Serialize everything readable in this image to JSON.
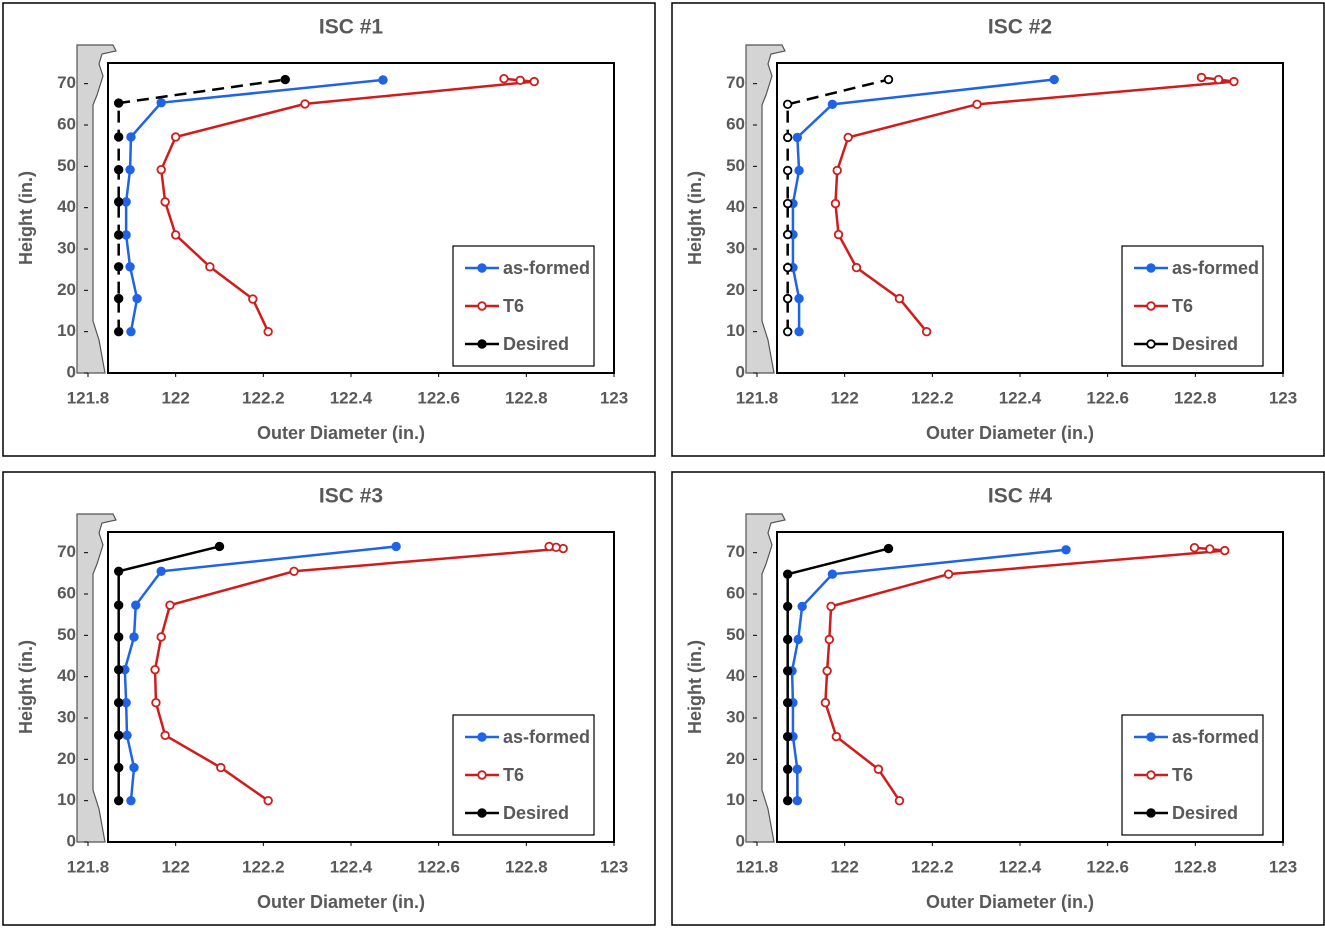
{
  "chart_data": [
    {
      "type": "line",
      "title": "ISC #1",
      "x_label": "Outer Diameter (in.)",
      "y_label": "Height (in.)",
      "xlim": [
        121.8,
        123
      ],
      "xticks": [
        121.8,
        122,
        122.2,
        122.4,
        122.6,
        122.8,
        123
      ],
      "ylim": [
        0,
        75
      ],
      "yticks": [
        0,
        10,
        20,
        30,
        40,
        50,
        60,
        70
      ],
      "legend": "lower right",
      "series": [
        {
          "name": "as-formed",
          "color": "#1f63e6",
          "line_style": "solid",
          "marker": "filled",
          "x": [
            121.898,
            121.912,
            121.896,
            121.887,
            121.887,
            121.896,
            121.898,
            121.967,
            122.473
          ],
          "values": [
            10,
            18,
            25.7,
            33.4,
            41.4,
            49.2,
            57.1,
            65.4,
            70.9
          ]
        },
        {
          "name": "T6",
          "color": "#d01c1c",
          "line_style": "solid",
          "marker": "open",
          "x": [
            122.211,
            122.176,
            122.078,
            122.0,
            121.976,
            121.967,
            122.0,
            122.295,
            122.818,
            122.786,
            122.749
          ],
          "values": [
            10,
            17.9,
            25.7,
            33.4,
            41.4,
            49.2,
            57.1,
            65.1,
            70.5,
            70.8,
            71.2
          ]
        },
        {
          "name": "Desired",
          "color": "#000000",
          "line_style": "dashed",
          "marker": "filled",
          "x": [
            121.87,
            121.87,
            121.87,
            121.87,
            121.87,
            121.87,
            121.87,
            121.87,
            122.25
          ],
          "values": [
            10,
            18,
            25.7,
            33.4,
            41.4,
            49.2,
            57.1,
            65.3,
            71
          ]
        }
      ]
    },
    {
      "type": "line",
      "title": "ISC #2",
      "x_label": "Outer Diameter (in.)",
      "y_label": "Height (in.)",
      "xlim": [
        121.8,
        123
      ],
      "xticks": [
        121.8,
        122,
        122.2,
        122.4,
        122.6,
        122.8,
        123
      ],
      "ylim": [
        0,
        75
      ],
      "yticks": [
        0,
        10,
        20,
        30,
        40,
        50,
        60,
        70
      ],
      "legend": "lower right",
      "series": [
        {
          "name": "as-formed",
          "color": "#1f63e6",
          "line_style": "solid",
          "marker": "filled",
          "x": [
            121.896,
            121.896,
            121.882,
            121.882,
            121.882,
            121.896,
            121.892,
            121.972,
            122.478
          ],
          "values": [
            10,
            18,
            25.5,
            33.5,
            41,
            49,
            57,
            65,
            71
          ]
        },
        {
          "name": "T6",
          "color": "#d01c1c",
          "line_style": "solid",
          "marker": "open",
          "x": [
            122.187,
            122.125,
            122.027,
            121.986,
            121.979,
            121.983,
            122.008,
            122.302,
            122.888,
            122.853,
            122.814
          ],
          "values": [
            10,
            18,
            25.5,
            33.5,
            41,
            49,
            57,
            65,
            70.5,
            71,
            71.5
          ]
        },
        {
          "name": "Desired",
          "color": "#000000",
          "line_style": "dashed",
          "marker": "open",
          "x": [
            121.87,
            121.87,
            121.87,
            121.87,
            121.87,
            121.87,
            121.87,
            121.87,
            122.1
          ],
          "values": [
            10,
            18,
            25.5,
            33.5,
            41,
            49,
            57,
            65,
            71
          ]
        }
      ]
    },
    {
      "type": "line",
      "title": "ISC #3",
      "x_label": "Outer Diameter (in.)",
      "y_label": "Height (in.)",
      "xlim": [
        121.8,
        123
      ],
      "xticks": [
        121.8,
        122,
        122.2,
        122.4,
        122.6,
        122.8,
        123
      ],
      "ylim": [
        0,
        75
      ],
      "yticks": [
        0,
        10,
        20,
        30,
        40,
        50,
        60,
        70
      ],
      "legend": "lower right",
      "series": [
        {
          "name": "as-formed",
          "color": "#1f63e6",
          "line_style": "solid",
          "marker": "filled",
          "x": [
            121.898,
            121.905,
            121.889,
            121.887,
            121.884,
            121.905,
            121.909,
            121.967,
            122.503
          ],
          "values": [
            10,
            18,
            25.8,
            33.7,
            41.7,
            49.6,
            57.3,
            65.5,
            71.5
          ]
        },
        {
          "name": "T6",
          "color": "#d01c1c",
          "line_style": "solid",
          "marker": "open",
          "x": [
            122.211,
            122.103,
            121.976,
            121.955,
            121.953,
            121.967,
            121.987,
            122.27,
            122.884,
            122.868,
            122.852
          ],
          "values": [
            10,
            18,
            25.8,
            33.7,
            41.7,
            49.6,
            57.3,
            65.5,
            71,
            71.3,
            71.5
          ]
        },
        {
          "name": "Desired",
          "color": "#000000",
          "line_style": "solid",
          "marker": "filled",
          "x": [
            121.87,
            121.87,
            121.87,
            121.87,
            121.87,
            121.87,
            121.87,
            121.87,
            122.1
          ],
          "values": [
            10,
            18,
            25.8,
            33.7,
            41.7,
            49.6,
            57.3,
            65.5,
            71.5
          ]
        }
      ]
    },
    {
      "type": "line",
      "title": "ISC #4",
      "x_label": "Outer Diameter (in.)",
      "y_label": "Height (in.)",
      "xlim": [
        121.8,
        123
      ],
      "xticks": [
        121.8,
        122,
        122.2,
        122.4,
        122.6,
        122.8,
        123
      ],
      "ylim": [
        0,
        75
      ],
      "yticks": [
        0,
        10,
        20,
        30,
        40,
        50,
        60,
        70
      ],
      "legend": "lower right",
      "series": [
        {
          "name": "as-formed",
          "color": "#1f63e6",
          "line_style": "solid",
          "marker": "filled",
          "x": [
            121.892,
            121.892,
            121.882,
            121.882,
            121.88,
            121.894,
            121.903,
            121.972,
            122.505
          ],
          "values": [
            10,
            17.6,
            25.5,
            33.7,
            41.4,
            49,
            57,
            64.8,
            70.7
          ]
        },
        {
          "name": "T6",
          "color": "#d01c1c",
          "line_style": "solid",
          "marker": "open",
          "x": [
            122.125,
            122.077,
            121.981,
            121.956,
            121.96,
            121.965,
            121.969,
            122.237,
            122.867,
            122.833,
            122.798
          ],
          "values": [
            10,
            17.6,
            25.5,
            33.7,
            41.4,
            49,
            57,
            64.8,
            70.5,
            70.9,
            71.2
          ]
        },
        {
          "name": "Desired",
          "color": "#000000",
          "line_style": "solid",
          "marker": "filled",
          "x": [
            121.87,
            121.87,
            121.87,
            121.87,
            121.87,
            121.87,
            121.87,
            121.87,
            122.1
          ],
          "values": [
            10,
            17.6,
            25.5,
            33.7,
            41.4,
            49,
            57,
            64.8,
            71
          ]
        }
      ]
    }
  ]
}
